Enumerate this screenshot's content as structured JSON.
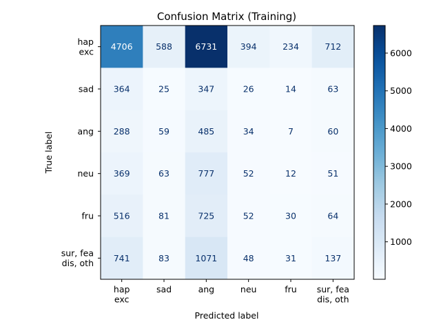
{
  "chart_data": {
    "type": "heatmap",
    "title": "Confusion Matrix (Training)",
    "xlabel": "Predicted label",
    "ylabel": "True label",
    "x_categories": [
      [
        "hap",
        "exc"
      ],
      [
        "sad"
      ],
      [
        "ang"
      ],
      [
        "neu"
      ],
      [
        "fru"
      ],
      [
        "sur, fea",
        "dis, oth"
      ]
    ],
    "y_categories": [
      [
        "hap",
        "exc"
      ],
      [
        "sad"
      ],
      [
        "ang"
      ],
      [
        "neu"
      ],
      [
        "fru"
      ],
      [
        "sur, fea",
        "dis, oth"
      ]
    ],
    "matrix": [
      [
        4706,
        588,
        6731,
        394,
        234,
        712
      ],
      [
        364,
        25,
        347,
        26,
        14,
        63
      ],
      [
        288,
        59,
        485,
        34,
        7,
        60
      ],
      [
        369,
        63,
        777,
        52,
        12,
        51
      ],
      [
        516,
        81,
        725,
        52,
        30,
        64
      ],
      [
        741,
        83,
        1071,
        48,
        31,
        137
      ]
    ],
    "colormap": "Blues",
    "colorbar": {
      "range": [
        7,
        6731
      ],
      "ticks": [
        1000,
        2000,
        3000,
        4000,
        5000,
        6000
      ]
    }
  }
}
